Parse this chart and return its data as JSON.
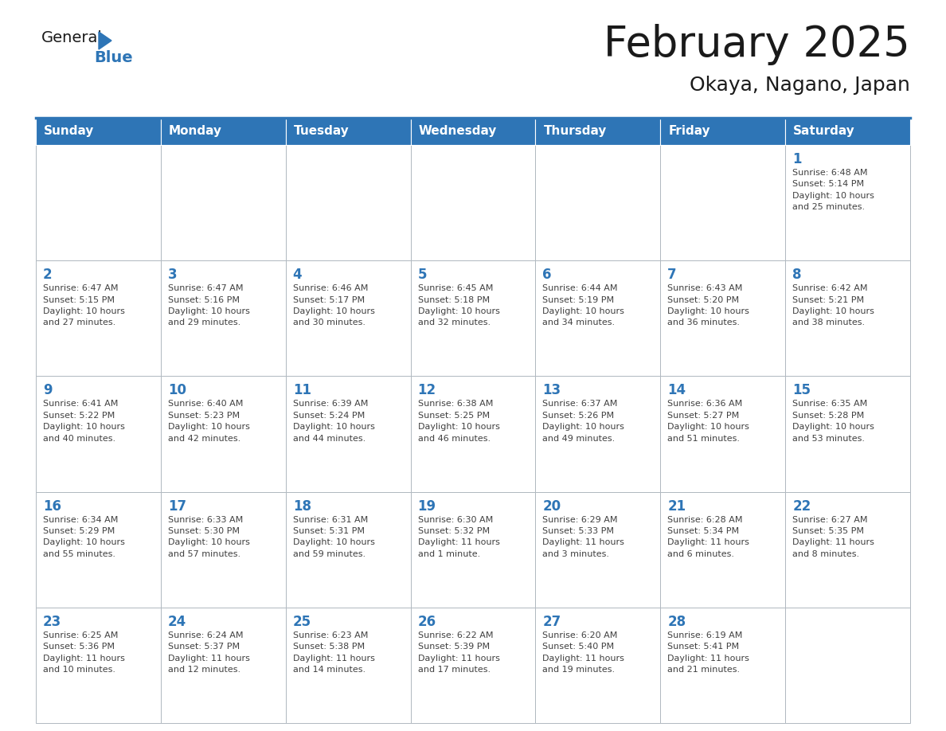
{
  "title": "February 2025",
  "subtitle": "Okaya, Nagano, Japan",
  "header_bg": "#2e75b6",
  "header_text": "#ffffff",
  "header_days": [
    "Sunday",
    "Monday",
    "Tuesday",
    "Wednesday",
    "Thursday",
    "Friday",
    "Saturday"
  ],
  "cell_border": "#b0b8c0",
  "day_number_color": "#2e75b6",
  "info_color": "#404040",
  "title_color": "#1a1a1a",
  "subtitle_color": "#1a1a1a",
  "logo_general_color": "#1a1a1a",
  "logo_blue_color": "#2e75b6",
  "calendar_data": [
    {
      "days": [
        null,
        null,
        null,
        null,
        null,
        null,
        1
      ],
      "info": [
        null,
        null,
        null,
        null,
        null,
        null,
        "Sunrise: 6:48 AM\nSunset: 5:14 PM\nDaylight: 10 hours\nand 25 minutes."
      ]
    },
    {
      "days": [
        2,
        3,
        4,
        5,
        6,
        7,
        8
      ],
      "info": [
        "Sunrise: 6:47 AM\nSunset: 5:15 PM\nDaylight: 10 hours\nand 27 minutes.",
        "Sunrise: 6:47 AM\nSunset: 5:16 PM\nDaylight: 10 hours\nand 29 minutes.",
        "Sunrise: 6:46 AM\nSunset: 5:17 PM\nDaylight: 10 hours\nand 30 minutes.",
        "Sunrise: 6:45 AM\nSunset: 5:18 PM\nDaylight: 10 hours\nand 32 minutes.",
        "Sunrise: 6:44 AM\nSunset: 5:19 PM\nDaylight: 10 hours\nand 34 minutes.",
        "Sunrise: 6:43 AM\nSunset: 5:20 PM\nDaylight: 10 hours\nand 36 minutes.",
        "Sunrise: 6:42 AM\nSunset: 5:21 PM\nDaylight: 10 hours\nand 38 minutes."
      ]
    },
    {
      "days": [
        9,
        10,
        11,
        12,
        13,
        14,
        15
      ],
      "info": [
        "Sunrise: 6:41 AM\nSunset: 5:22 PM\nDaylight: 10 hours\nand 40 minutes.",
        "Sunrise: 6:40 AM\nSunset: 5:23 PM\nDaylight: 10 hours\nand 42 minutes.",
        "Sunrise: 6:39 AM\nSunset: 5:24 PM\nDaylight: 10 hours\nand 44 minutes.",
        "Sunrise: 6:38 AM\nSunset: 5:25 PM\nDaylight: 10 hours\nand 46 minutes.",
        "Sunrise: 6:37 AM\nSunset: 5:26 PM\nDaylight: 10 hours\nand 49 minutes.",
        "Sunrise: 6:36 AM\nSunset: 5:27 PM\nDaylight: 10 hours\nand 51 minutes.",
        "Sunrise: 6:35 AM\nSunset: 5:28 PM\nDaylight: 10 hours\nand 53 minutes."
      ]
    },
    {
      "days": [
        16,
        17,
        18,
        19,
        20,
        21,
        22
      ],
      "info": [
        "Sunrise: 6:34 AM\nSunset: 5:29 PM\nDaylight: 10 hours\nand 55 minutes.",
        "Sunrise: 6:33 AM\nSunset: 5:30 PM\nDaylight: 10 hours\nand 57 minutes.",
        "Sunrise: 6:31 AM\nSunset: 5:31 PM\nDaylight: 10 hours\nand 59 minutes.",
        "Sunrise: 6:30 AM\nSunset: 5:32 PM\nDaylight: 11 hours\nand 1 minute.",
        "Sunrise: 6:29 AM\nSunset: 5:33 PM\nDaylight: 11 hours\nand 3 minutes.",
        "Sunrise: 6:28 AM\nSunset: 5:34 PM\nDaylight: 11 hours\nand 6 minutes.",
        "Sunrise: 6:27 AM\nSunset: 5:35 PM\nDaylight: 11 hours\nand 8 minutes."
      ]
    },
    {
      "days": [
        23,
        24,
        25,
        26,
        27,
        28,
        null
      ],
      "info": [
        "Sunrise: 6:25 AM\nSunset: 5:36 PM\nDaylight: 11 hours\nand 10 minutes.",
        "Sunrise: 6:24 AM\nSunset: 5:37 PM\nDaylight: 11 hours\nand 12 minutes.",
        "Sunrise: 6:23 AM\nSunset: 5:38 PM\nDaylight: 11 hours\nand 14 minutes.",
        "Sunrise: 6:22 AM\nSunset: 5:39 PM\nDaylight: 11 hours\nand 17 minutes.",
        "Sunrise: 6:20 AM\nSunset: 5:40 PM\nDaylight: 11 hours\nand 19 minutes.",
        "Sunrise: 6:19 AM\nSunset: 5:41 PM\nDaylight: 11 hours\nand 21 minutes.",
        null
      ]
    }
  ],
  "fig_width": 11.88,
  "fig_height": 9.18,
  "dpi": 100
}
